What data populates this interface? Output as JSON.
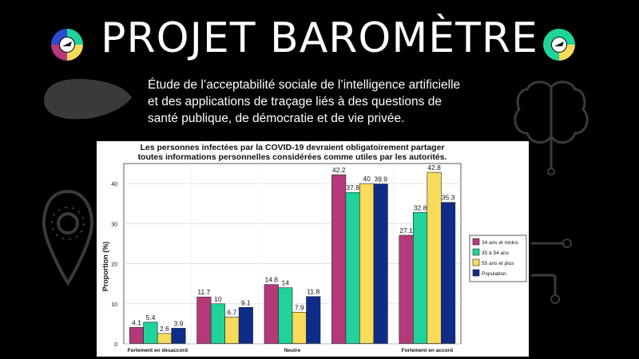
{
  "header": {
    "title": "PROJET BAROMÈTRE",
    "subtitle_lines": [
      "Étude de l’acceptabilité sociale de l’intelligence artificielle",
      "et des applications de traçage liés à des questions de",
      "santé publique, de démocratie et de vie privée."
    ],
    "logo_icon": "barometer-logo-icon"
  },
  "decorations": {
    "left_icons": [
      "speech-bubble-icon",
      "virus-pin-icon"
    ],
    "right_icons": [
      "brain-circuit-icon",
      "circuit-icon"
    ]
  },
  "chart_data": {
    "type": "bar",
    "title_lines": [
      "Les personnes infectées par la COVID-19 devraient obligatoirement partager",
      "toutes informations personnelles considérées comme utiles par les autorités."
    ],
    "categories": [
      "Fortement en désaccord",
      "",
      "Neutre",
      "",
      "Fortement en accord"
    ],
    "xlabel": "",
    "ylabel": "Proportion (%)",
    "ylim": [
      0,
      45
    ],
    "yticks": [
      0,
      10,
      20,
      30,
      40
    ],
    "grid": true,
    "legend_position": "right",
    "series": [
      {
        "name": "34 ans et moins",
        "color": "#b5397a",
        "values": [
          4.1,
          11.7,
          14.8,
          42.2,
          27.1
        ]
      },
      {
        "name": "35 à 54 ans",
        "color": "#1fd39b",
        "values": [
          5.4,
          10,
          14,
          37.8,
          32.8
        ]
      },
      {
        "name": "55 ans et plus",
        "color": "#f7dc5c",
        "values": [
          2.6,
          6.7,
          7.9,
          40,
          42.8
        ]
      },
      {
        "name": "Population",
        "color": "#0e2d8a",
        "values": [
          3.9,
          9.1,
          11.8,
          39.9,
          35.3
        ]
      }
    ],
    "value_labels": [
      [
        "4.1",
        "11.7",
        "14.8",
        "42.2",
        "27.1"
      ],
      [
        "5.4",
        "10",
        "14",
        "37.8",
        "32.8"
      ],
      [
        "2.6",
        "6.7",
        "7.9",
        "40",
        "42.8"
      ],
      [
        "3.9",
        "9.1",
        "11.8",
        "39.9",
        "35.3"
      ]
    ]
  }
}
